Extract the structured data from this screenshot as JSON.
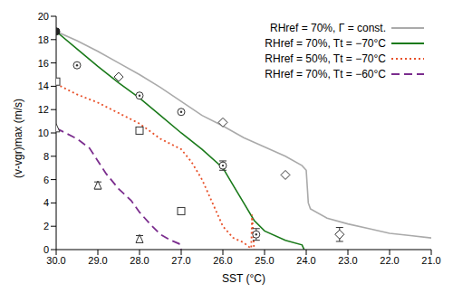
{
  "chart_data": {
    "type": "line",
    "x_label": "SST (°C)",
    "y_label": "(v-vgr)max (m/s)",
    "xlim": [
      30,
      21
    ],
    "ylim": [
      0,
      20
    ],
    "xticks": [
      {
        "value": 30,
        "label": "30.0"
      },
      {
        "value": 29,
        "label": "29.0"
      },
      {
        "value": 28,
        "label": "28.0"
      },
      {
        "value": 27,
        "label": "27.0"
      },
      {
        "value": 26,
        "label": "26.0"
      },
      {
        "value": 25,
        "label": "25.0"
      },
      {
        "value": 24,
        "label": "24.0"
      },
      {
        "value": 23,
        "label": "23.0"
      },
      {
        "value": 22,
        "label": "22.0"
      },
      {
        "value": 21,
        "label": "21.0"
      }
    ],
    "yticks": [
      0,
      2,
      4,
      6,
      8,
      10,
      12,
      14,
      16,
      18,
      20
    ],
    "grid": false,
    "legend": "upper right",
    "series": [
      {
        "name": "RHref = 70%, Γ = const.",
        "color": "#aaaaaa",
        "line_style": "solid",
        "x": [
          30,
          29.5,
          29,
          28.5,
          28,
          27.5,
          27,
          26.5,
          26,
          25.5,
          25,
          24.5,
          24.1,
          24.0,
          23.95,
          23.9,
          23.5,
          23,
          22.5,
          22,
          21.5,
          21
        ],
        "values": [
          18.7,
          17.9,
          17.0,
          16.0,
          15.0,
          13.9,
          12.7,
          11.5,
          10.6,
          9.6,
          8.8,
          8.0,
          7.2,
          6.8,
          4.0,
          3.5,
          2.7,
          2.2,
          1.8,
          1.4,
          1.2,
          1.0
        ]
      },
      {
        "name": "RHref = 70%, Tt = −70°C",
        "color": "#1a7a1a",
        "line_style": "solid",
        "x": [
          30,
          29.5,
          29,
          28.5,
          28,
          27.5,
          27,
          26.5,
          26,
          25.75,
          25.5,
          25.25,
          25,
          24.5,
          24.1,
          24.05
        ],
        "values": [
          18.7,
          17.2,
          15.7,
          14.3,
          13.0,
          11.5,
          10.0,
          8.6,
          7.0,
          5.5,
          4.0,
          2.5,
          1.6,
          0.8,
          0.4,
          0.0
        ]
      },
      {
        "name": "RHref = 50%, Tt = −70°C",
        "color": "#e8512a",
        "line_style": "dotted",
        "x": [
          30,
          29.5,
          29,
          28.5,
          28,
          27.5,
          27,
          26.75,
          26.5,
          26.25,
          26,
          25.75,
          25.5,
          25.4,
          25.32,
          25.3,
          25.25
        ],
        "values": [
          14.2,
          13.3,
          12.6,
          11.7,
          10.8,
          9.5,
          8.6,
          7.5,
          6.0,
          4.0,
          2.0,
          1.0,
          0.6,
          0.3,
          0.1,
          3.0,
          0.0
        ]
      },
      {
        "name": "RHref = 70%, Tt = −60°C",
        "color": "#7b2d8e",
        "line_style": "dashed",
        "x": [
          30,
          29.5,
          29.2,
          29,
          28.8,
          28.5,
          28.2,
          28,
          27.75,
          27.5,
          27.25,
          27.05,
          27.0
        ],
        "values": [
          10.4,
          9.5,
          8.7,
          7.6,
          6.5,
          5.2,
          4.2,
          3.2,
          2.2,
          1.3,
          0.8,
          0.5,
          0.0
        ]
      }
    ],
    "points": [
      {
        "marker": "filled_circle",
        "color": "#222222",
        "x": [
          30
        ],
        "y": [
          18.7
        ],
        "error": [
          null
        ]
      },
      {
        "marker": "circledot",
        "color": "#333333",
        "x": [
          29.5,
          28,
          27,
          26,
          25.2
        ],
        "y": [
          15.8,
          13.2,
          11.8,
          7.2,
          1.3
        ],
        "error": [
          null,
          null,
          null,
          0.4,
          0.5
        ]
      },
      {
        "marker": "diamond",
        "color": "#333333",
        "x": [
          28.5,
          26,
          24.5,
          23.2
        ],
        "y": [
          14.8,
          10.9,
          6.4,
          1.3
        ],
        "error": [
          null,
          null,
          null,
          0.6
        ]
      },
      {
        "marker": "square",
        "color": "#333333",
        "x": [
          30,
          28,
          27
        ],
        "y": [
          14.4,
          10.2,
          3.3
        ],
        "error": [
          null,
          null,
          null
        ]
      },
      {
        "marker": "triangle",
        "color": "#333333",
        "x": [
          30,
          29,
          28
        ],
        "y": [
          10.4,
          5.5,
          0.9
        ],
        "error": [
          null,
          0.3,
          0.3
        ]
      }
    ]
  }
}
